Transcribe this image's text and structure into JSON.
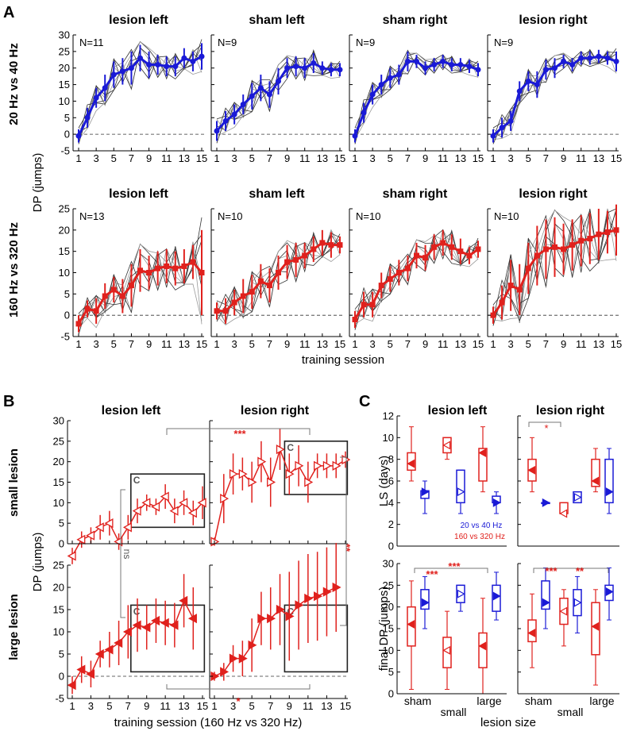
{
  "colors": {
    "blue": "#1a1ad6",
    "red": "#e0211d",
    "grey": "#555555",
    "black": "#000000"
  },
  "figure": {
    "panel_letters": [
      "A",
      "B",
      "C"
    ],
    "a_row_labels": [
      "20 Hz vs 40 Hz",
      "160 Hz vs 320 Hz"
    ],
    "a_ylabel": "DP (jumps)",
    "a_xlabel": "training session",
    "b_row_labels": [
      "small lesion",
      "large lesion"
    ],
    "b_ylabel": "DP (jumps)",
    "b_xlabel": "training session (160 Hz vs 320 Hz)",
    "c_ylabels": [
      "LS (days)",
      "final DP (jumps)"
    ],
    "c_xlabel": "lesion size",
    "c_legend": [
      "20 vs 40 Hz",
      "160 vs 320 Hz"
    ]
  },
  "chart_data": [
    {
      "panel": "A",
      "type": "line",
      "xlabel": "training session",
      "ylabel": "DP (jumps)",
      "x": [
        1,
        2,
        3,
        4,
        5,
        6,
        7,
        8,
        9,
        10,
        11,
        12,
        13,
        14,
        15
      ],
      "xticks": [
        1,
        3,
        5,
        7,
        9,
        11,
        13,
        15
      ],
      "ylim_top": [
        -5,
        30
      ],
      "yticks_top": [
        -5,
        0,
        5,
        10,
        15,
        20,
        25,
        30
      ],
      "ylim_bottom": [
        -5,
        25
      ],
      "yticks_bottom": [
        -5,
        0,
        5,
        10,
        15,
        20,
        25
      ],
      "subplots": [
        {
          "row": 0,
          "col": 0,
          "title": "lesion left",
          "n_label": "N=11",
          "color": "blue",
          "mean": [
            -0.5,
            5,
            11,
            14,
            18,
            19,
            20,
            23,
            21,
            21,
            20.5,
            20.5,
            23,
            22,
            23.5
          ],
          "err": [
            2,
            3,
            3,
            4,
            4,
            4,
            5,
            4,
            4,
            3,
            3,
            3,
            3,
            3,
            4
          ]
        },
        {
          "row": 0,
          "col": 1,
          "title": "sham left",
          "n_label": "N=9",
          "color": "blue",
          "mean": [
            1,
            4,
            6,
            9,
            11.5,
            14,
            12,
            16,
            20,
            20.5,
            20,
            21.5,
            20,
            19.5,
            19.5
          ],
          "err": [
            3,
            3,
            3,
            3,
            4,
            4,
            4,
            4,
            3,
            3,
            3,
            3,
            2,
            2,
            2
          ]
        },
        {
          "row": 0,
          "col": 2,
          "title": "sham right",
          "n_label": "N=9",
          "color": "blue",
          "mean": [
            -0.5,
            6.5,
            12,
            15,
            17,
            18,
            22,
            22,
            20,
            21,
            22,
            21,
            21,
            20.5,
            19.5
          ],
          "err": [
            2,
            3,
            3,
            3,
            3,
            3,
            3,
            2,
            2,
            2,
            2,
            2,
            2,
            2,
            2
          ]
        },
        {
          "row": 0,
          "col": 3,
          "title": "lesion right",
          "n_label": "N=9",
          "color": "blue",
          "mean": [
            -0.5,
            2,
            4,
            13,
            16,
            15,
            19.5,
            20,
            22,
            21,
            23,
            23,
            23.5,
            23,
            22
          ],
          "err": [
            2,
            3,
            3,
            3,
            3,
            4,
            3,
            3,
            2,
            2,
            2,
            2,
            2,
            2,
            3
          ]
        },
        {
          "row": 1,
          "col": 0,
          "title": "lesion left",
          "n_label": "N=13",
          "color": "red",
          "mean": [
            -2,
            1.5,
            1,
            4.5,
            6,
            4.5,
            7,
            10.5,
            10,
            11,
            11.5,
            11,
            11.5,
            12.5,
            10
          ],
          "err": [
            2,
            2,
            3,
            3,
            3,
            4,
            5,
            5,
            4,
            4,
            4,
            4,
            4,
            4,
            10
          ]
        },
        {
          "row": 1,
          "col": 1,
          "title": "sham left",
          "n_label": "N=10",
          "color": "red",
          "mean": [
            1,
            1,
            3,
            4.5,
            5.5,
            8,
            7,
            10,
            12.5,
            13,
            14,
            15.5,
            17,
            16.5,
            16.5
          ],
          "err": [
            2,
            3,
            3,
            4,
            4,
            4,
            4,
            4,
            4,
            4,
            3,
            3,
            3,
            3,
            2
          ]
        },
        {
          "row": 1,
          "col": 2,
          "title": "sham right",
          "n_label": "N=10",
          "color": "red",
          "mean": [
            -1,
            2.5,
            2.5,
            7,
            8.5,
            10,
            11,
            14,
            13.5,
            16,
            17,
            16,
            15,
            14,
            15.5
          ],
          "err": [
            2,
            3,
            3,
            3,
            3,
            3,
            3,
            3,
            3,
            3,
            3,
            3,
            3,
            2,
            2
          ]
        },
        {
          "row": 1,
          "col": 3,
          "title": "lesion right",
          "n_label": "N=10",
          "color": "red",
          "mean": [
            0,
            3,
            7,
            6,
            11,
            14,
            15.5,
            16,
            15.5,
            16.5,
            17.5,
            18,
            19,
            19.5,
            20
          ],
          "err": [
            2,
            4,
            6,
            6,
            6,
            7,
            7,
            7,
            6,
            6,
            6,
            6,
            6,
            5,
            6
          ]
        }
      ]
    },
    {
      "panel": "B",
      "type": "line",
      "xlabel": "training session (160 Hz vs 320 Hz)",
      "ylabel": "DP (jumps)",
      "x": [
        1,
        2,
        3,
        4,
        5,
        6,
        7,
        8,
        9,
        10,
        11,
        12,
        13,
        14,
        15
      ],
      "xticks": [
        1,
        3,
        5,
        7,
        9,
        11,
        13,
        15
      ],
      "ylim_top": [
        0,
        30
      ],
      "yticks_top": [
        0,
        5,
        10,
        15,
        20,
        25,
        30
      ],
      "ylim_bottom": [
        -5,
        25
      ],
      "yticks_bottom": [
        -5,
        0,
        5,
        10,
        15,
        20,
        25
      ],
      "box_label": "C",
      "significance": [
        "***",
        "**",
        "ns",
        "*"
      ],
      "subplots": [
        {
          "row": 0,
          "col": 0,
          "title": "lesion left",
          "marker": "open-left-triangle",
          "mean": [
            -3,
            1,
            2,
            4,
            5,
            0.5,
            4,
            8,
            10,
            9,
            11.5,
            8,
            10,
            7.5,
            10
          ],
          "err": [
            2,
            2,
            2,
            3,
            3,
            2,
            3,
            3,
            2,
            2,
            3,
            3,
            3,
            3,
            4
          ]
        },
        {
          "row": 0,
          "col": 1,
          "title": "lesion right",
          "marker": "open-right-triangle",
          "mean": [
            0.5,
            11,
            17,
            17,
            15,
            20,
            15,
            23,
            17,
            19,
            15,
            19,
            19,
            19,
            20.5
          ],
          "err": [
            1,
            6,
            5,
            4,
            5,
            5,
            6,
            5,
            5,
            5,
            5,
            3,
            3,
            3,
            2
          ]
        },
        {
          "row": 1,
          "col": 0,
          "title": "lesion left",
          "marker": "filled-left-triangle",
          "mean": [
            -2,
            1.5,
            0.5,
            5,
            6,
            7.5,
            10,
            11.5,
            11,
            12.5,
            12,
            11.5,
            17,
            13
          ],
          "err": [
            2,
            3,
            3,
            3,
            4,
            5,
            6,
            6,
            5,
            5,
            5,
            5,
            6,
            7
          ]
        },
        {
          "row": 1,
          "col": 1,
          "title": "lesion right",
          "marker": "filled-right-triangle",
          "mean": [
            0,
            1,
            4,
            4,
            7,
            13,
            13,
            15,
            13.5,
            16,
            17.5,
            18,
            19,
            20
          ],
          "err": [
            1,
            2,
            3,
            4,
            6,
            6,
            7,
            8,
            10,
            10,
            10,
            10,
            10,
            10
          ]
        }
      ]
    },
    {
      "panel": "C",
      "type": "box",
      "xlabel": "lesion size",
      "categories": [
        "sham",
        "small",
        "large"
      ],
      "ylim_top": [
        0,
        12
      ],
      "yticks_top": [
        0,
        2,
        4,
        6,
        8,
        10,
        12
      ],
      "ylim_bottom": [
        0,
        30
      ],
      "yticks_bottom": [
        0,
        5,
        10,
        15,
        20,
        25,
        30
      ],
      "legend": [
        {
          "label": "20 vs 40 Hz",
          "color": "blue"
        },
        {
          "label": "160 vs 320 Hz",
          "color": "red"
        }
      ],
      "significance_top": [
        "*"
      ],
      "significance_bottom_left": [
        "***",
        "***"
      ],
      "significance_bottom_right": [
        "***",
        "**"
      ],
      "groups": [
        {
          "panel": "LS",
          "side": "lesion left",
          "category": "sham",
          "series": "red",
          "wlo": 6,
          "q1": 7,
          "med": 7.6,
          "q3": 8.6,
          "whi": 11
        },
        {
          "panel": "LS",
          "side": "lesion left",
          "category": "sham",
          "series": "blue",
          "wlo": 3,
          "q1": 4.4,
          "med": 5,
          "q3": 5.1,
          "whi": 6
        },
        {
          "panel": "LS",
          "side": "lesion left",
          "category": "small",
          "series": "red",
          "wlo": 8,
          "q1": 8.6,
          "med": 9.3,
          "q3": 10,
          "whi": 10
        },
        {
          "panel": "LS",
          "side": "lesion left",
          "category": "small",
          "series": "blue",
          "wlo": 3,
          "q1": 4,
          "med": 5,
          "q3": 7,
          "whi": 7
        },
        {
          "panel": "LS",
          "side": "lesion left",
          "category": "large",
          "series": "red",
          "wlo": 5,
          "q1": 6,
          "med": 8.6,
          "q3": 9,
          "whi": 11
        },
        {
          "panel": "LS",
          "side": "lesion left",
          "category": "large",
          "series": "blue",
          "wlo": 3,
          "q1": 4,
          "med": 4,
          "q3": 4.6,
          "whi": 5
        },
        {
          "panel": "LS",
          "side": "lesion right",
          "category": "sham",
          "series": "red",
          "wlo": 5,
          "q1": 6,
          "med": 7,
          "q3": 8,
          "whi": 10
        },
        {
          "panel": "LS",
          "side": "lesion right",
          "category": "sham",
          "series": "blue",
          "wlo": 4,
          "q1": 4,
          "med": 4,
          "q3": 4,
          "whi": 4
        },
        {
          "panel": "LS",
          "side": "lesion right",
          "category": "small",
          "series": "red",
          "wlo": 3,
          "q1": 3,
          "med": 3,
          "q3": 4,
          "whi": 4
        },
        {
          "panel": "LS",
          "side": "lesion right",
          "category": "small",
          "series": "blue",
          "wlo": 4,
          "q1": 4,
          "med": 4.5,
          "q3": 5,
          "whi": 5
        },
        {
          "panel": "LS",
          "side": "lesion right",
          "category": "large",
          "series": "red",
          "wlo": 5,
          "q1": 5.5,
          "med": 6,
          "q3": 8,
          "whi": 9
        },
        {
          "panel": "LS",
          "side": "lesion right",
          "category": "large",
          "series": "blue",
          "wlo": 3,
          "q1": 4,
          "med": 5,
          "q3": 8,
          "whi": 9
        },
        {
          "panel": "finalDP",
          "side": "lesion left",
          "category": "sham",
          "series": "red",
          "wlo": 1,
          "q1": 11,
          "med": 16,
          "q3": 20,
          "whi": 26
        },
        {
          "panel": "finalDP",
          "side": "lesion left",
          "category": "sham",
          "series": "blue",
          "wlo": 15,
          "q1": 19.5,
          "med": 21,
          "q3": 24,
          "whi": 27
        },
        {
          "panel": "finalDP",
          "side": "lesion left",
          "category": "small",
          "series": "red",
          "wlo": 1,
          "q1": 6,
          "med": 10,
          "q3": 13,
          "whi": 19
        },
        {
          "panel": "finalDP",
          "side": "lesion left",
          "category": "small",
          "series": "blue",
          "wlo": 19,
          "q1": 21,
          "med": 23,
          "q3": 25,
          "whi": 25
        },
        {
          "panel": "finalDP",
          "side": "lesion left",
          "category": "large",
          "series": "red",
          "wlo": 0,
          "q1": 6,
          "med": 11,
          "q3": 14,
          "whi": 22
        },
        {
          "panel": "finalDP",
          "side": "lesion left",
          "category": "large",
          "series": "blue",
          "wlo": 17,
          "q1": 19,
          "med": 22.5,
          "q3": 25,
          "whi": 28
        },
        {
          "panel": "finalDP",
          "side": "lesion right",
          "category": "sham",
          "series": "red",
          "wlo": 6,
          "q1": 12,
          "med": 14,
          "q3": 17,
          "whi": 23
        },
        {
          "panel": "finalDP",
          "side": "lesion right",
          "category": "sham",
          "series": "blue",
          "wlo": 15,
          "q1": 19.5,
          "med": 21,
          "q3": 26,
          "whi": 29
        },
        {
          "panel": "finalDP",
          "side": "lesion right",
          "category": "small",
          "series": "red",
          "wlo": 11,
          "q1": 16,
          "med": 19,
          "q3": 22,
          "whi": 24
        },
        {
          "panel": "finalDP",
          "side": "lesion right",
          "category": "small",
          "series": "blue",
          "wlo": 14,
          "q1": 18,
          "med": 21,
          "q3": 24,
          "whi": 27
        },
        {
          "panel": "finalDP",
          "side": "lesion right",
          "category": "large",
          "series": "red",
          "wlo": 2,
          "q1": 9,
          "med": 15.5,
          "q3": 21,
          "whi": 24
        },
        {
          "panel": "finalDP",
          "side": "lesion right",
          "category": "large",
          "series": "blue",
          "wlo": 17,
          "q1": 21.5,
          "med": 23.5,
          "q3": 25,
          "whi": 29
        }
      ]
    }
  ]
}
